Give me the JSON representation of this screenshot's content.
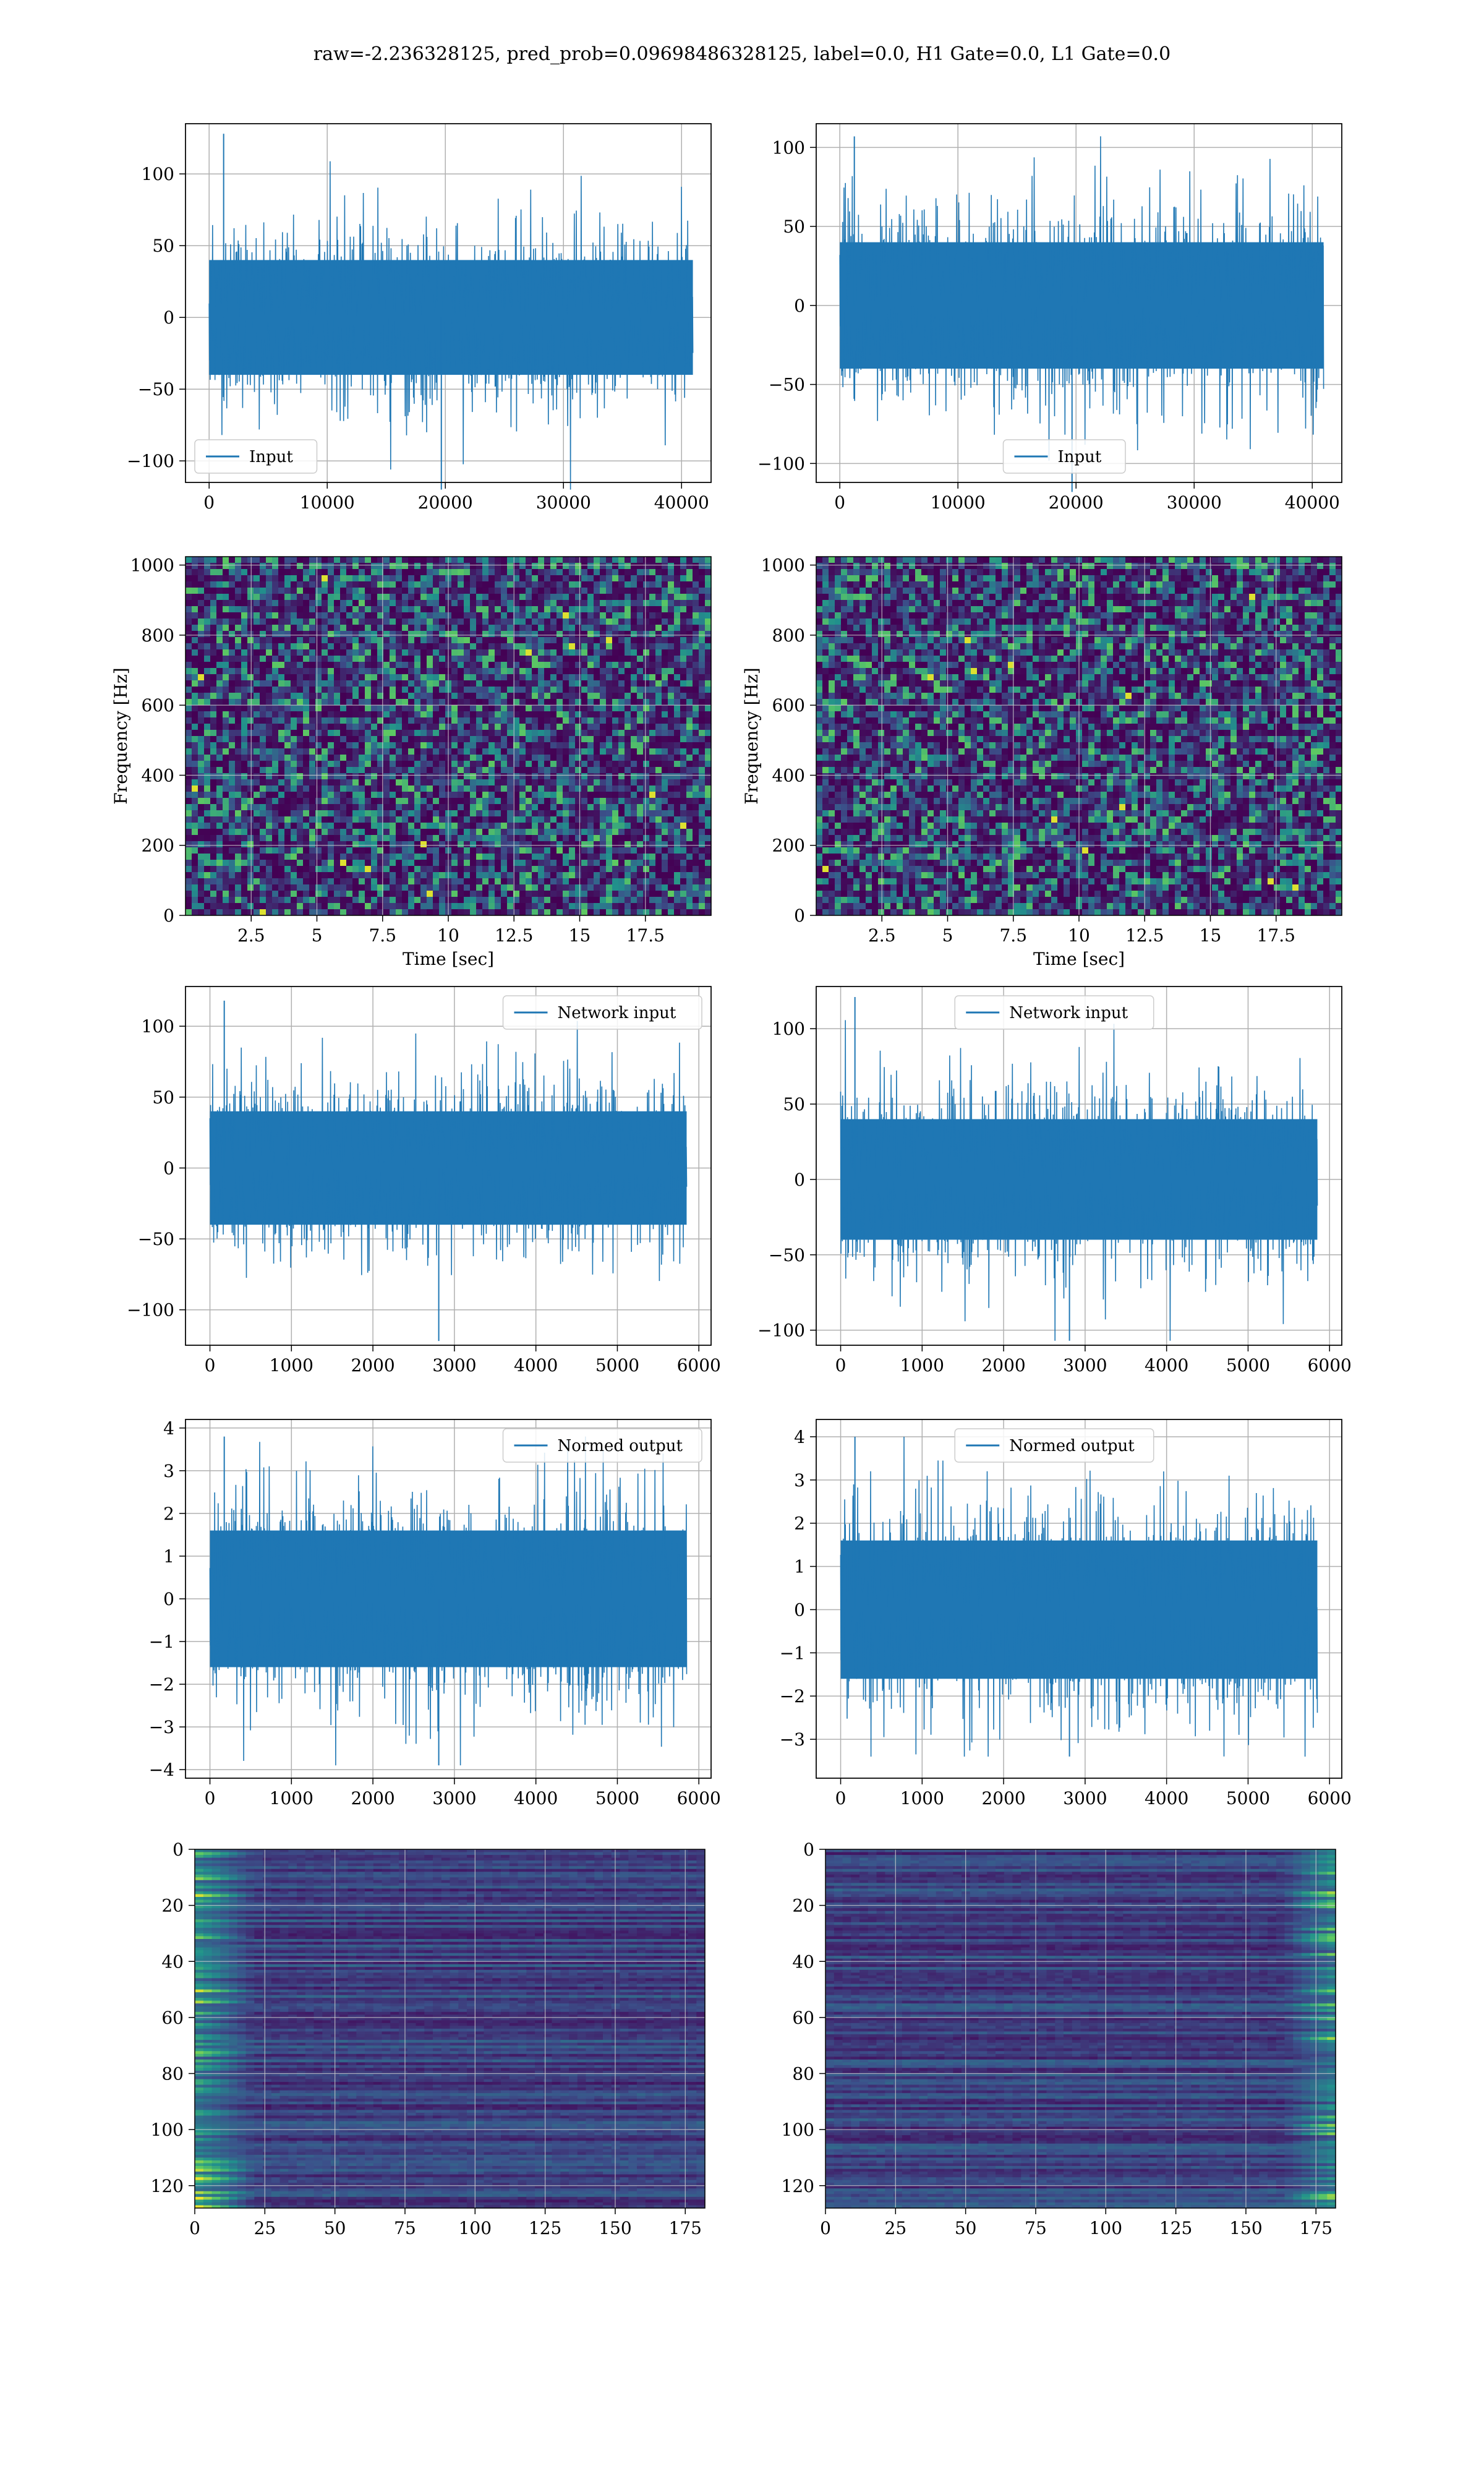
{
  "figure": {
    "title": "raw=-2.236328125, pred_prob=0.09698486328125, label=0.0, H1 Gate=0.0, L1 Gate=0.0"
  },
  "colors": {
    "series": "#1f77b4",
    "grid": "#b0b0b0",
    "viridis_dark": "#440154",
    "viridis_mid": "#21918c",
    "viridis_bright": "#fde725"
  },
  "chart_data": [
    {
      "id": "input-h1",
      "type": "line",
      "legend": "Input",
      "legend_position": "lower-left",
      "xlim": [
        -2000,
        42500
      ],
      "ylim": [
        -115,
        135
      ],
      "xticks": [
        0,
        10000,
        20000,
        30000,
        40000
      ],
      "yticks": [
        -100,
        -50,
        0,
        50,
        100
      ],
      "n_samples": 40960,
      "amplitude_rms": 25,
      "peak_max": 128,
      "peak_min": -120,
      "xlabel": "",
      "ylabel": "",
      "grid": true
    },
    {
      "id": "input-l1",
      "type": "line",
      "legend": "Input",
      "legend_position": "lower-right",
      "xlim": [
        -2000,
        42500
      ],
      "ylim": [
        -112,
        115
      ],
      "xticks": [
        0,
        10000,
        20000,
        30000,
        40000
      ],
      "yticks": [
        -100,
        -50,
        0,
        50,
        100
      ],
      "n_samples": 40960,
      "amplitude_rms": 25,
      "peak_max": 107,
      "peak_min": -118,
      "xlabel": "",
      "ylabel": "",
      "grid": true
    },
    {
      "id": "spectrogram-h1",
      "type": "heatmap",
      "colormap": "viridis",
      "xlim": [
        0,
        20
      ],
      "ylim": [
        0,
        1024
      ],
      "xticks": [
        2.5,
        5.0,
        7.5,
        10.0,
        12.5,
        15.0,
        17.5
      ],
      "yticks": [
        0,
        200,
        400,
        600,
        800,
        1000
      ],
      "xlabel": "Time [sec]",
      "ylabel": "Frequency [Hz]",
      "grid": true
    },
    {
      "id": "spectrogram-l1",
      "type": "heatmap",
      "colormap": "viridis",
      "xlim": [
        0,
        20
      ],
      "ylim": [
        0,
        1024
      ],
      "xticks": [
        2.5,
        5.0,
        7.5,
        10.0,
        12.5,
        15.0,
        17.5
      ],
      "yticks": [
        0,
        200,
        400,
        600,
        800,
        1000
      ],
      "xlabel": "Time [sec]",
      "ylabel": "Frequency [Hz]",
      "grid": true
    },
    {
      "id": "network-input-h1",
      "type": "line",
      "legend": "Network input",
      "legend_position": "upper-right",
      "xlim": [
        -300,
        6150
      ],
      "ylim": [
        -125,
        128
      ],
      "xticks": [
        0,
        1000,
        2000,
        3000,
        4000,
        5000,
        6000
      ],
      "yticks": [
        -100,
        -50,
        0,
        50,
        100
      ],
      "n_samples": 5850,
      "amplitude_rms": 25,
      "peak_max": 118,
      "peak_min": -122,
      "xlabel": "",
      "ylabel": "",
      "grid": true
    },
    {
      "id": "network-input-l1",
      "type": "line",
      "legend": "Network input",
      "legend_position": "upper-center",
      "xlim": [
        -300,
        6150
      ],
      "ylim": [
        -110,
        128
      ],
      "xticks": [
        0,
        1000,
        2000,
        3000,
        4000,
        5000,
        6000
      ],
      "yticks": [
        -100,
        -50,
        0,
        50,
        100
      ],
      "n_samples": 5850,
      "amplitude_rms": 25,
      "peak_max": 121,
      "peak_min": -107,
      "xlabel": "",
      "ylabel": "",
      "grid": true
    },
    {
      "id": "normed-output-h1",
      "type": "line",
      "legend": "Normed output",
      "legend_position": "upper-right",
      "xlim": [
        -300,
        6150
      ],
      "ylim": [
        -4.2,
        4.2
      ],
      "xticks": [
        0,
        1000,
        2000,
        3000,
        4000,
        5000,
        6000
      ],
      "yticks": [
        -4,
        -3,
        -2,
        -1,
        0,
        1,
        2,
        3,
        4
      ],
      "n_samples": 5850,
      "amplitude_rms": 1,
      "peak_max": 3.8,
      "peak_min": -3.9,
      "xlabel": "",
      "ylabel": "",
      "grid": true
    },
    {
      "id": "normed-output-l1",
      "type": "line",
      "legend": "Normed output",
      "legend_position": "upper-center",
      "xlim": [
        -300,
        6150
      ],
      "ylim": [
        -3.9,
        4.4
      ],
      "xticks": [
        0,
        1000,
        2000,
        3000,
        4000,
        5000,
        6000
      ],
      "yticks": [
        -3,
        -2,
        -1,
        0,
        1,
        2,
        3,
        4
      ],
      "n_samples": 5850,
      "amplitude_rms": 1,
      "peak_max": 4.0,
      "peak_min": -3.4,
      "xlabel": "",
      "ylabel": "",
      "grid": true
    },
    {
      "id": "feature-map-h1",
      "type": "heatmap",
      "colormap": "viridis",
      "y_inverted": true,
      "xlim": [
        0,
        182
      ],
      "ylim": [
        0,
        128
      ],
      "bright_side": "left",
      "xticks": [
        0,
        25,
        50,
        75,
        100,
        125,
        150,
        175
      ],
      "yticks": [
        0,
        20,
        40,
        60,
        80,
        100,
        120
      ],
      "xlabel": "",
      "ylabel": "",
      "grid": true
    },
    {
      "id": "feature-map-l1",
      "type": "heatmap",
      "colormap": "viridis",
      "y_inverted": true,
      "xlim": [
        0,
        182
      ],
      "ylim": [
        0,
        128
      ],
      "bright_side": "right",
      "xticks": [
        0,
        25,
        50,
        75,
        100,
        125,
        150,
        175
      ],
      "yticks": [
        0,
        20,
        40,
        60,
        80,
        100,
        120
      ],
      "xlabel": "",
      "ylabel": "",
      "grid": true
    }
  ]
}
